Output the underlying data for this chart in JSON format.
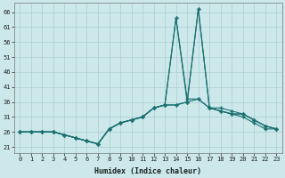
{
  "xlabel": "Humidex (Indice chaleur)",
  "bg_color": "#cce8ea",
  "grid_color": "#aacdd4",
  "line_color": "#1a7070",
  "xlim": [
    -0.5,
    23.5
  ],
  "ylim": [
    19,
    69
  ],
  "xticks": [
    0,
    1,
    2,
    3,
    4,
    5,
    6,
    7,
    8,
    9,
    10,
    11,
    12,
    13,
    14,
    15,
    16,
    17,
    18,
    19,
    20,
    21,
    22,
    23
  ],
  "yticks": [
    21,
    26,
    31,
    36,
    41,
    46,
    51,
    56,
    61,
    66
  ],
  "series": [
    [
      26,
      26,
      26,
      26,
      25,
      24,
      23,
      22,
      27,
      29,
      30,
      31,
      34,
      35,
      64,
      36,
      37,
      34,
      33,
      32,
      31,
      29,
      27,
      27
    ],
    [
      26,
      26,
      26,
      26,
      25,
      24,
      23,
      22,
      27,
      29,
      30,
      31,
      34,
      35,
      64,
      37,
      37,
      34,
      33,
      32,
      32,
      30,
      28,
      27
    ],
    [
      26,
      26,
      26,
      26,
      25,
      24,
      23,
      22,
      27,
      29,
      30,
      31,
      34,
      35,
      35,
      36,
      67,
      34,
      33,
      32,
      32,
      30,
      28,
      27
    ],
    [
      26,
      26,
      26,
      26,
      25,
      24,
      23,
      22,
      27,
      29,
      30,
      31,
      34,
      35,
      35,
      36,
      67,
      34,
      34,
      33,
      32,
      30,
      28,
      27
    ]
  ]
}
